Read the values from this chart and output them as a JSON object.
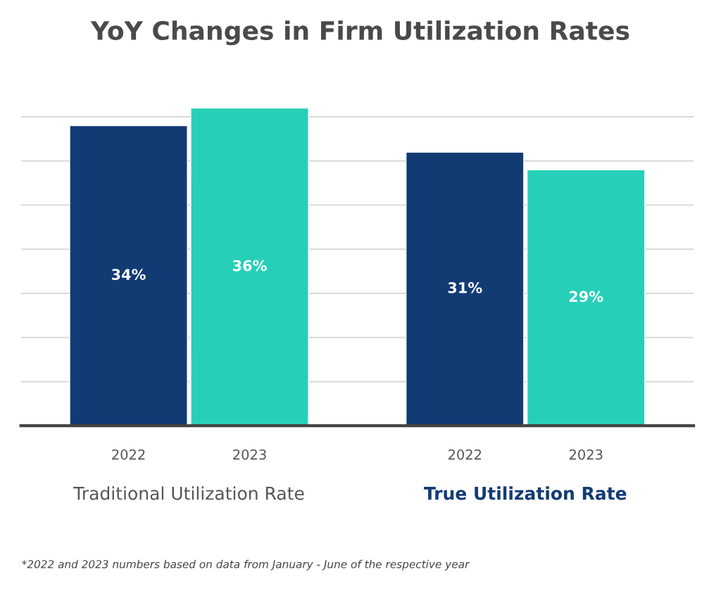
{
  "chart_data": {
    "type": "bar",
    "title": "YoY Changes in Firm Utilization Rates",
    "categories": [
      "Traditional Utilization Rate",
      "True Utilization Rate"
    ],
    "series": [
      {
        "name": "2022",
        "color": "#123b74",
        "values": [
          34,
          31
        ],
        "value_labels": [
          "34%",
          "31%"
        ]
      },
      {
        "name": "2023",
        "color": "#27cfb8",
        "values": [
          36,
          29
        ],
        "value_labels": [
          "36%",
          "29%"
        ]
      }
    ],
    "grid": "y",
    "legend": false,
    "annotations": [
      "*2022 and 2023 numbers based on data from January - June of the respective year"
    ]
  }
}
